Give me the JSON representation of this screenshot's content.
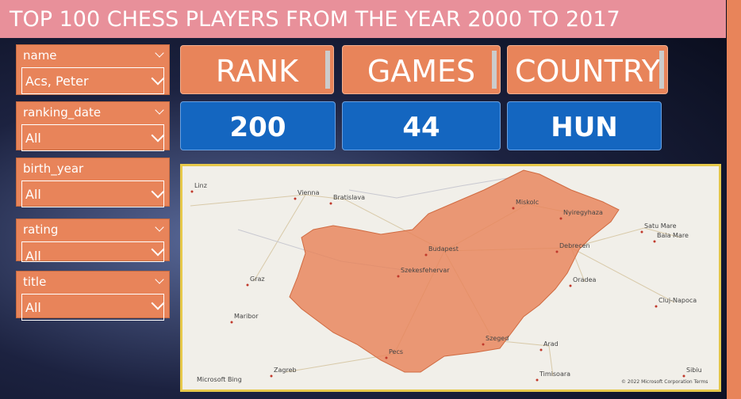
{
  "header": {
    "title": "TOP 100 CHESS PLAYERS FROM THE YEAR 2000 TO 2017"
  },
  "filters": [
    {
      "label": "name",
      "value": "Acs, Peter"
    },
    {
      "label": "ranking_date",
      "value": "All"
    },
    {
      "label": "birth_year",
      "value": "All"
    },
    {
      "label": "rating",
      "value": "All"
    },
    {
      "label": "title",
      "value": "All"
    }
  ],
  "cards": [
    {
      "label": "RANK",
      "value": 200
    },
    {
      "label": "GAMES",
      "value": 44
    },
    {
      "label": "COUNTRY",
      "value": "HUN"
    }
  ],
  "map": {
    "places": [
      "Linz",
      "Vienna",
      "Bratislava",
      "Graz",
      "Maribor",
      "Zagreb",
      "Budapest",
      "Szekesfehervar",
      "Pecs",
      "Szeged",
      "Miskolc",
      "Nyiregyhaza",
      "Debrecen",
      "Oradea",
      "Arad",
      "Timisoara",
      "Satu Mare",
      "Baia Mare",
      "Cluj-Napoca",
      "Sibiu"
    ],
    "attribution": "Microsoft Bing",
    "copyright": "© 2022 Microsoft Corporation Terms"
  }
}
